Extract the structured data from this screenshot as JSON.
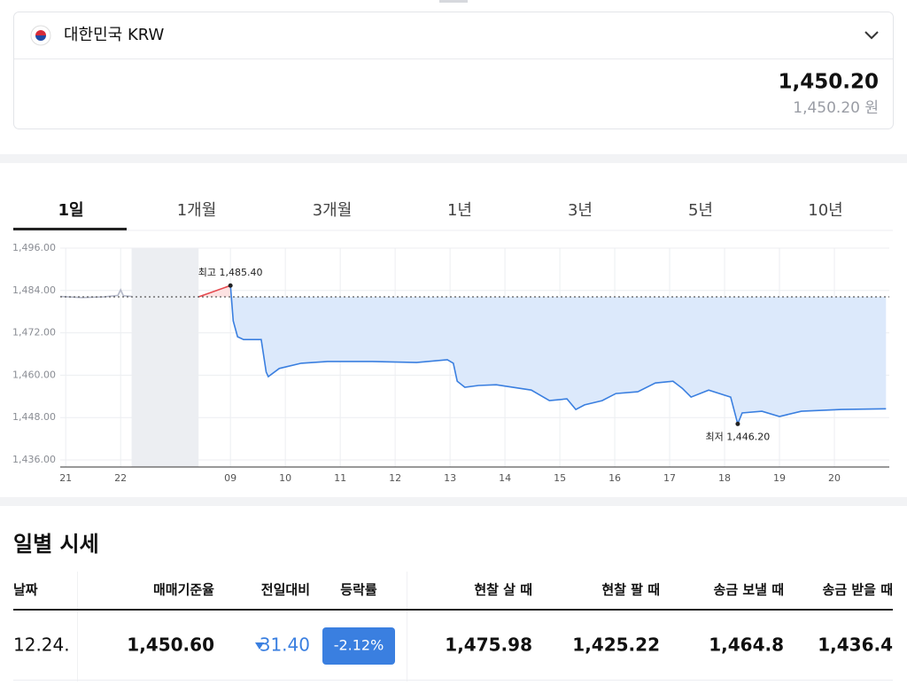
{
  "header": {
    "currency": "대한민국 KRW",
    "rate": "1,450.20",
    "rate_sub": "1,450.20 원"
  },
  "tabs": {
    "items": [
      "1일",
      "1개월",
      "3개월",
      "1년",
      "3년",
      "5년",
      "10년"
    ],
    "active": 0
  },
  "chart_data": {
    "type": "line",
    "xlim": [
      5.9,
      21.0
    ],
    "ylim": [
      1434,
      1496
    ],
    "xticks": [
      {
        "value": 6,
        "label": "21"
      },
      {
        "value": 7,
        "label": "22"
      },
      {
        "value": 9,
        "label": "09"
      },
      10,
      11,
      12,
      13,
      14,
      15,
      16,
      17,
      18,
      19,
      20
    ],
    "yticks": [
      {
        "value": 1496,
        "label": "1,496.00"
      },
      {
        "value": 1484,
        "label": "1,484.00"
      },
      {
        "value": 1472,
        "label": "1,472.00"
      },
      {
        "value": 1460,
        "label": "1,460.00"
      },
      {
        "value": 1448,
        "label": "1,448.00"
      },
      {
        "value": 1436,
        "label": "1,436.00"
      }
    ],
    "grid": true,
    "reference": 1482.2,
    "shaded_x": [
      7.2,
      8.42
    ],
    "series": [
      {
        "color": "#b4b8c8",
        "x": [
          5.9,
          6.3,
          6.7,
          6.95,
          7.0,
          7.05,
          7.2
        ],
        "values": [
          1482.3,
          1482.0,
          1482.2,
          1482.6,
          1484.2,
          1482.5,
          1482.3
        ]
      },
      {
        "color": "#e5484d",
        "fill": "#fde2e2",
        "x": [
          8.42,
          9
        ],
        "values": [
          1482.2,
          1485.4
        ]
      },
      {
        "color": "#3a7fe0",
        "fill": "#dce9fb",
        "x": [
          9,
          9.05,
          9.13,
          9.24,
          9.56,
          9.65,
          9.69,
          9.89,
          10.29,
          10.77,
          11.58,
          12.39,
          12.95,
          13.06,
          13.13,
          13.27,
          13.52,
          13.84,
          14.48,
          14.81,
          15.13,
          15.29,
          15.45,
          15.77,
          16.02,
          16.42,
          16.74,
          17.06,
          17.23,
          17.39,
          17.71,
          18.11,
          18.24,
          18.32,
          18.68,
          19.0,
          19.4,
          20.13,
          20.94
        ],
        "values": [
          1485.4,
          1475.4,
          1470.9,
          1470.1,
          1470.1,
          1460.9,
          1459.6,
          1461.9,
          1463.4,
          1463.9,
          1463.9,
          1463.6,
          1464.4,
          1463.4,
          1458.3,
          1456.6,
          1457.1,
          1457.3,
          1455.8,
          1452.8,
          1453.3,
          1450.3,
          1451.6,
          1452.8,
          1454.8,
          1455.3,
          1457.8,
          1458.3,
          1456.3,
          1453.8,
          1455.8,
          1453.8,
          1446.2,
          1449.3,
          1449.8,
          1448.3,
          1449.8,
          1450.3,
          1450.5
        ]
      }
    ],
    "annotations": [
      {
        "label": "최고 1,485.40",
        "x": 9,
        "value": 1485.4,
        "side": "above"
      },
      {
        "label": "최저 1,446.20",
        "x": 18.24,
        "value": 1446.2,
        "side": "below"
      }
    ]
  },
  "table": {
    "title": "일별 시세",
    "headers": [
      "날짜",
      "매매기준율",
      "전일대비",
      "등락률",
      "현찰 살 때",
      "현찰 팔 때",
      "송금 보낼 때",
      "송금 받을 때"
    ],
    "rows": [
      [
        "12.24.",
        "1,450.60",
        "31.40",
        "-2.12%",
        "1,475.98",
        "1,425.22",
        "1,464.8",
        "1,436.4"
      ]
    ]
  }
}
